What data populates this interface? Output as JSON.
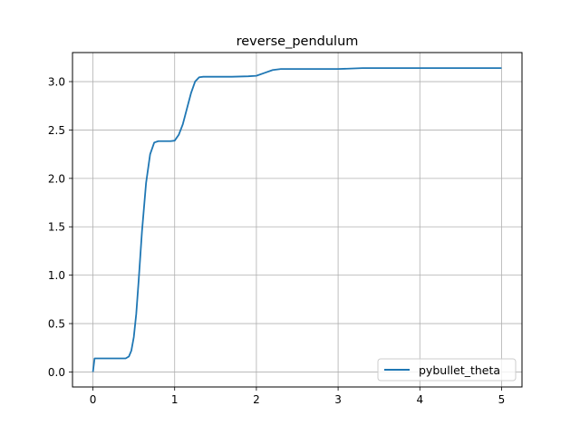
{
  "chart_data": {
    "type": "line",
    "title": "reverse_pendulum",
    "xlabel": "",
    "ylabel": "",
    "xlim": [
      -0.25,
      5.25
    ],
    "ylim": [
      -0.155,
      3.3
    ],
    "xticks": [
      0,
      1,
      2,
      3,
      4,
      5
    ],
    "xtick_labels": [
      "0",
      "1",
      "2",
      "3",
      "4",
      "5"
    ],
    "yticks": [
      0.0,
      0.5,
      1.0,
      1.5,
      2.0,
      2.5,
      3.0
    ],
    "ytick_labels": [
      "0.0",
      "0.5",
      "1.0",
      "1.5",
      "2.0",
      "2.5",
      "3.0"
    ],
    "grid": true,
    "legend_position": "lower-right",
    "series": [
      {
        "name": "pybullet_theta",
        "color": "#1f77b4",
        "x": [
          0.0,
          0.02,
          0.05,
          0.1,
          0.2,
          0.3,
          0.4,
          0.44,
          0.47,
          0.5,
          0.53,
          0.56,
          0.6,
          0.65,
          0.7,
          0.75,
          0.8,
          0.85,
          0.9,
          0.95,
          1.0,
          1.05,
          1.1,
          1.15,
          1.2,
          1.25,
          1.3,
          1.35,
          1.4,
          1.5,
          1.7,
          1.9,
          2.0,
          2.1,
          2.2,
          2.3,
          2.5,
          2.8,
          3.0,
          3.3,
          3.6,
          4.0,
          4.5,
          5.0
        ],
        "y": [
          0.0,
          0.14,
          0.14,
          0.14,
          0.14,
          0.14,
          0.14,
          0.16,
          0.22,
          0.36,
          0.6,
          0.95,
          1.45,
          1.95,
          2.25,
          2.37,
          2.385,
          2.385,
          2.385,
          2.385,
          2.39,
          2.45,
          2.56,
          2.72,
          2.88,
          3.0,
          3.045,
          3.05,
          3.05,
          3.05,
          3.05,
          3.055,
          3.06,
          3.09,
          3.12,
          3.13,
          3.13,
          3.13,
          3.13,
          3.14,
          3.14,
          3.14,
          3.14,
          3.14
        ]
      }
    ]
  }
}
